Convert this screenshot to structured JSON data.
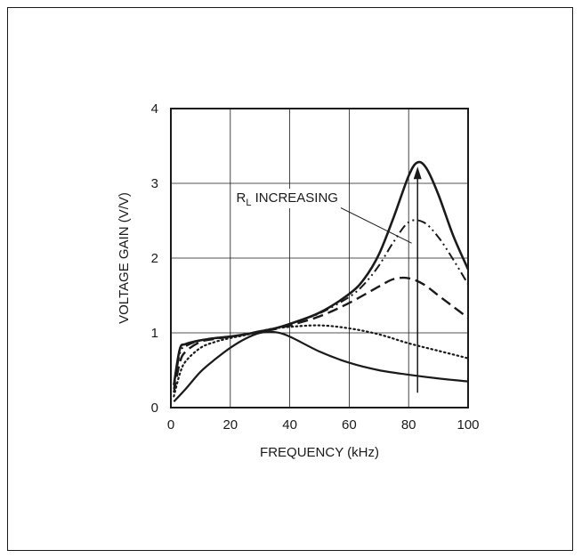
{
  "chart_data": {
    "type": "line",
    "title": "",
    "xlabel": "FREQUENCY (kHz)",
    "ylabel": "VOLTAGE GAIN (V/V)",
    "xlim": [
      0,
      100
    ],
    "ylim": [
      0,
      4
    ],
    "xticks": [
      0,
      20,
      40,
      60,
      80,
      100
    ],
    "yticks": [
      0,
      1,
      2,
      3,
      4
    ],
    "grid": true,
    "annotation": {
      "text_main": "R",
      "text_sub": "L",
      "text_rest": " INCREASING",
      "arrow_x": 83,
      "arrow_y_from": 0.2,
      "arrow_y_to": 3.2
    },
    "series": [
      {
        "style": "solid",
        "x": [
          1,
          5,
          10,
          15,
          20,
          25,
          30,
          35,
          40,
          50,
          60,
          70,
          80,
          90,
          100
        ],
        "y": [
          0.08,
          0.25,
          0.48,
          0.65,
          0.8,
          0.92,
          1.0,
          1.01,
          0.95,
          0.75,
          0.6,
          0.5,
          0.44,
          0.39,
          0.35
        ]
      },
      {
        "style": "dotted",
        "x": [
          1,
          3,
          5,
          10,
          15,
          20,
          25,
          30,
          35,
          40,
          50,
          60,
          70,
          80,
          90,
          100
        ],
        "y": [
          0.15,
          0.45,
          0.62,
          0.8,
          0.88,
          0.93,
          0.97,
          1.02,
          1.06,
          1.08,
          1.1,
          1.06,
          0.98,
          0.86,
          0.76,
          0.66
        ]
      },
      {
        "style": "dashed",
        "x": [
          1,
          3,
          5,
          10,
          15,
          20,
          25,
          30,
          35,
          40,
          50,
          60,
          70,
          75,
          80,
          85,
          90,
          95,
          100
        ],
        "y": [
          0.2,
          0.6,
          0.75,
          0.88,
          0.92,
          0.95,
          0.98,
          1.02,
          1.05,
          1.1,
          1.22,
          1.4,
          1.62,
          1.72,
          1.73,
          1.65,
          1.5,
          1.35,
          1.2
        ]
      },
      {
        "style": "dashdot",
        "x": [
          1,
          3,
          5,
          10,
          15,
          20,
          25,
          30,
          35,
          40,
          50,
          60,
          65,
          70,
          75,
          80,
          85,
          90,
          95,
          100
        ],
        "y": [
          0.25,
          0.72,
          0.82,
          0.9,
          0.93,
          0.95,
          0.98,
          1.02,
          1.06,
          1.12,
          1.26,
          1.48,
          1.65,
          1.9,
          2.22,
          2.48,
          2.48,
          2.28,
          1.98,
          1.65
        ]
      },
      {
        "style": "solid-bold",
        "x": [
          1,
          3,
          5,
          10,
          15,
          20,
          25,
          30,
          35,
          40,
          50,
          60,
          65,
          70,
          75,
          80,
          83,
          86,
          90,
          95,
          100
        ],
        "y": [
          0.3,
          0.78,
          0.85,
          0.9,
          0.93,
          0.95,
          0.98,
          1.02,
          1.06,
          1.12,
          1.27,
          1.52,
          1.72,
          2.05,
          2.55,
          3.1,
          3.28,
          3.2,
          2.85,
          2.3,
          1.85
        ]
      }
    ]
  }
}
